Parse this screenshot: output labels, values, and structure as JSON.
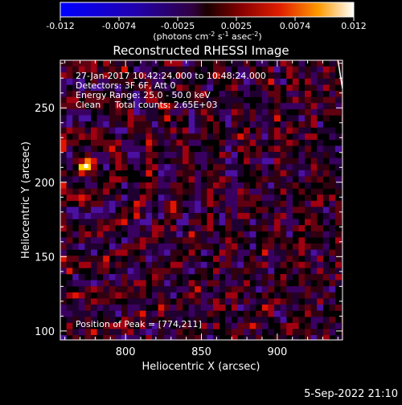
{
  "chart_data": {
    "type": "heatmap",
    "title": "Reconstructed RHESSI Image",
    "xlabel": "Heliocentric X (arcsec)",
    "ylabel": "Heliocentric Y (arcsec)",
    "xlim": [
      757,
      943
    ],
    "ylim": [
      94,
      282
    ],
    "xticks": [
      800,
      850,
      900
    ],
    "yticks": [
      100,
      150,
      200,
      250
    ],
    "colorbar": {
      "ticks": [
        "-0.012",
        "-0.0074",
        "-0.0025",
        "0.0025",
        "0.0074",
        "0.012"
      ],
      "range": [
        -0.012,
        0.012
      ],
      "unit_main": "(photons cm",
      "unit_sup1": "-2",
      "unit_mid1": " s",
      "unit_sup2": "-1",
      "unit_mid2": " asec",
      "unit_sup3": "-2",
      "unit_end": ")"
    },
    "annotations": [
      "27-Jan-2017 10:42:24.000 to 10:48:24.000",
      "Detectors: 3F 6F, Att 0",
      "Energy Range: 25.0 - 50.0 keV",
      "Clean     Total counts: 2.65E+03"
    ],
    "peak": {
      "label": "Position of Peak = [774,211]",
      "x": 774,
      "y": 211
    },
    "limb_line": [
      [
        940,
        282
      ],
      [
        943,
        263
      ]
    ]
  },
  "timestamp": "5-Sep-2022 21:10",
  "colors": {
    "background": "#000000",
    "foreground": "#ffffff"
  }
}
